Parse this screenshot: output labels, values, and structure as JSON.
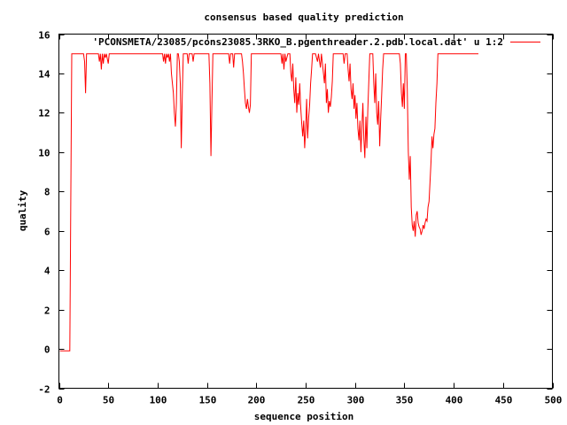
{
  "chart_data": {
    "type": "line",
    "title": "consensus based quality prediction",
    "xlabel": "sequence position",
    "ylabel": "quality",
    "xlim": [
      0,
      500
    ],
    "ylim": [
      -2,
      16
    ],
    "xticks": [
      0,
      50,
      100,
      150,
      200,
      250,
      300,
      350,
      400,
      450,
      500
    ],
    "yticks": [
      -2,
      0,
      2,
      4,
      6,
      8,
      10,
      12,
      14,
      16
    ],
    "grid": false,
    "legend": "top-right",
    "series": [
      {
        "name": "'PCONSMETA/23085/pcons23085.3RKO_B.pgenthreader.2.pdb.local.dat' u 1:2",
        "color": "#ff0000",
        "points": [
          [
            1,
            -0.1
          ],
          [
            2,
            -0.1
          ],
          [
            3,
            -0.1
          ],
          [
            5,
            -0.1
          ],
          [
            8,
            -0.1
          ],
          [
            10,
            -0.1
          ],
          [
            11,
            -0.1
          ],
          [
            12,
            7.5
          ],
          [
            13,
            15
          ],
          [
            15,
            15
          ],
          [
            20,
            15
          ],
          [
            25,
            15
          ],
          [
            26,
            14.6
          ],
          [
            27,
            13
          ],
          [
            28,
            15
          ],
          [
            35,
            15
          ],
          [
            40,
            15
          ],
          [
            41,
            14.6
          ],
          [
            42,
            15
          ],
          [
            43,
            14.2
          ],
          [
            44,
            15
          ],
          [
            45,
            14.5
          ],
          [
            46,
            15
          ],
          [
            47,
            14.8
          ],
          [
            48,
            15
          ],
          [
            50,
            14.5
          ],
          [
            51,
            15
          ],
          [
            55,
            15
          ],
          [
            60,
            15
          ],
          [
            70,
            15
          ],
          [
            80,
            15
          ],
          [
            90,
            15
          ],
          [
            100,
            15
          ],
          [
            105,
            15
          ],
          [
            106,
            14.6
          ],
          [
            107,
            15
          ],
          [
            108,
            14.5
          ],
          [
            109,
            15
          ],
          [
            110,
            14.8
          ],
          [
            111,
            15
          ],
          [
            112,
            14.6
          ],
          [
            113,
            15
          ],
          [
            114,
            14
          ],
          [
            115,
            13.5
          ],
          [
            116,
            13
          ],
          [
            117,
            12
          ],
          [
            118,
            11.3
          ],
          [
            119,
            12.5
          ],
          [
            120,
            15
          ],
          [
            121,
            15
          ],
          [
            122,
            14.6
          ],
          [
            123,
            13.5
          ],
          [
            124,
            10.2
          ],
          [
            125,
            13
          ],
          [
            126,
            15
          ],
          [
            128,
            15
          ],
          [
            130,
            15
          ],
          [
            131,
            14.5
          ],
          [
            132,
            15
          ],
          [
            135,
            15
          ],
          [
            136,
            14.6
          ],
          [
            137,
            15
          ],
          [
            140,
            15
          ],
          [
            145,
            15
          ],
          [
            150,
            15
          ],
          [
            152,
            15
          ],
          [
            153,
            13.5
          ],
          [
            154,
            9.8
          ],
          [
            155,
            12.5
          ],
          [
            156,
            15
          ],
          [
            160,
            15
          ],
          [
            165,
            15
          ],
          [
            170,
            15
          ],
          [
            172,
            15
          ],
          [
            173,
            14.5
          ],
          [
            174,
            15
          ],
          [
            176,
            15
          ],
          [
            177,
            14.3
          ],
          [
            178,
            15
          ],
          [
            185,
            15
          ],
          [
            186,
            14.6
          ],
          [
            187,
            14
          ],
          [
            188,
            13.2
          ],
          [
            189,
            12.5
          ],
          [
            190,
            12.2
          ],
          [
            191,
            12.7
          ],
          [
            192,
            12.3
          ],
          [
            193,
            12
          ],
          [
            194,
            12.4
          ],
          [
            195,
            15
          ],
          [
            200,
            15
          ],
          [
            205,
            15
          ],
          [
            210,
            15
          ],
          [
            215,
            15
          ],
          [
            220,
            15
          ],
          [
            225,
            15
          ],
          [
            226,
            14.5
          ],
          [
            227,
            15
          ],
          [
            228,
            14.2
          ],
          [
            229,
            15
          ],
          [
            230,
            14.6
          ],
          [
            232,
            15
          ],
          [
            234,
            15
          ],
          [
            235,
            14
          ],
          [
            236,
            13.6
          ],
          [
            237,
            14.5
          ],
          [
            238,
            13.2
          ],
          [
            239,
            12.5
          ],
          [
            240,
            13.8
          ],
          [
            241,
            12
          ],
          [
            242,
            13
          ],
          [
            243,
            12.4
          ],
          [
            244,
            13.5
          ],
          [
            245,
            12.3
          ],
          [
            246,
            11.5
          ],
          [
            247,
            10.8
          ],
          [
            248,
            11.6
          ],
          [
            249,
            10.2
          ],
          [
            250,
            11.2
          ],
          [
            251,
            12.7
          ],
          [
            252,
            10.7
          ],
          [
            253,
            11.7
          ],
          [
            254,
            12.4
          ],
          [
            255,
            13.5
          ],
          [
            256,
            14.2
          ],
          [
            257,
            15
          ],
          [
            260,
            15
          ],
          [
            262,
            14.6
          ],
          [
            263,
            15
          ],
          [
            265,
            14.3
          ],
          [
            266,
            15
          ],
          [
            268,
            14
          ],
          [
            269,
            13.5
          ],
          [
            270,
            14.5
          ],
          [
            271,
            12.5
          ],
          [
            272,
            13.2
          ],
          [
            273,
            12
          ],
          [
            274,
            12.6
          ],
          [
            275,
            12.3
          ],
          [
            276,
            12.8
          ],
          [
            277,
            13.6
          ],
          [
            278,
            15
          ],
          [
            280,
            15
          ],
          [
            285,
            15
          ],
          [
            288,
            15
          ],
          [
            289,
            14.5
          ],
          [
            290,
            15
          ],
          [
            292,
            15
          ],
          [
            293,
            14.2
          ],
          [
            294,
            13.6
          ],
          [
            295,
            14.5
          ],
          [
            296,
            13.2
          ],
          [
            297,
            12.7
          ],
          [
            298,
            13.5
          ],
          [
            299,
            12.2
          ],
          [
            300,
            12.9
          ],
          [
            301,
            11.7
          ],
          [
            302,
            12.5
          ],
          [
            303,
            11.2
          ],
          [
            304,
            10.6
          ],
          [
            305,
            11.6
          ],
          [
            306,
            10
          ],
          [
            307,
            11.3
          ],
          [
            308,
            12.5
          ],
          [
            309,
            10.7
          ],
          [
            310,
            9.7
          ],
          [
            311,
            11.8
          ],
          [
            312,
            10.2
          ],
          [
            313,
            12.2
          ],
          [
            314,
            13.6
          ],
          [
            315,
            15
          ],
          [
            318,
            15
          ],
          [
            319,
            13.5
          ],
          [
            320,
            12.5
          ],
          [
            321,
            14
          ],
          [
            322,
            12
          ],
          [
            323,
            11.4
          ],
          [
            324,
            12.6
          ],
          [
            325,
            10.3
          ],
          [
            326,
            11.7
          ],
          [
            327,
            12.9
          ],
          [
            328,
            14.2
          ],
          [
            329,
            15
          ],
          [
            335,
            15
          ],
          [
            340,
            15
          ],
          [
            345,
            15
          ],
          [
            346,
            14.5
          ],
          [
            347,
            13
          ],
          [
            348,
            12.3
          ],
          [
            349,
            13.5
          ],
          [
            350,
            12.2
          ],
          [
            351,
            15
          ],
          [
            352,
            15
          ],
          [
            353,
            13.2
          ],
          [
            354,
            10
          ],
          [
            355,
            8.6
          ],
          [
            356,
            9.8
          ],
          [
            357,
            7.2
          ],
          [
            358,
            6.3
          ],
          [
            359,
            6
          ],
          [
            360,
            6.5
          ],
          [
            361,
            5.7
          ],
          [
            362,
            6.8
          ],
          [
            363,
            7
          ],
          [
            364,
            6.4
          ],
          [
            365,
            6.2
          ],
          [
            366,
            6.1
          ],
          [
            367,
            5.8
          ],
          [
            368,
            6
          ],
          [
            369,
            6.3
          ],
          [
            370,
            6.1
          ],
          [
            371,
            6.4
          ],
          [
            372,
            6.6
          ],
          [
            373,
            6.5
          ],
          [
            374,
            7.2
          ],
          [
            375,
            7.5
          ],
          [
            376,
            8.5
          ],
          [
            377,
            9.5
          ],
          [
            378,
            10.8
          ],
          [
            379,
            10.2
          ],
          [
            380,
            10.9
          ],
          [
            381,
            11.2
          ],
          [
            382,
            12.5
          ],
          [
            383,
            13.5
          ],
          [
            384,
            15
          ],
          [
            390,
            15
          ],
          [
            400,
            15
          ],
          [
            410,
            15
          ],
          [
            415,
            15
          ],
          [
            420,
            15
          ],
          [
            425,
            15
          ],
          [
            400,
            15
          ]
        ]
      }
    ]
  }
}
